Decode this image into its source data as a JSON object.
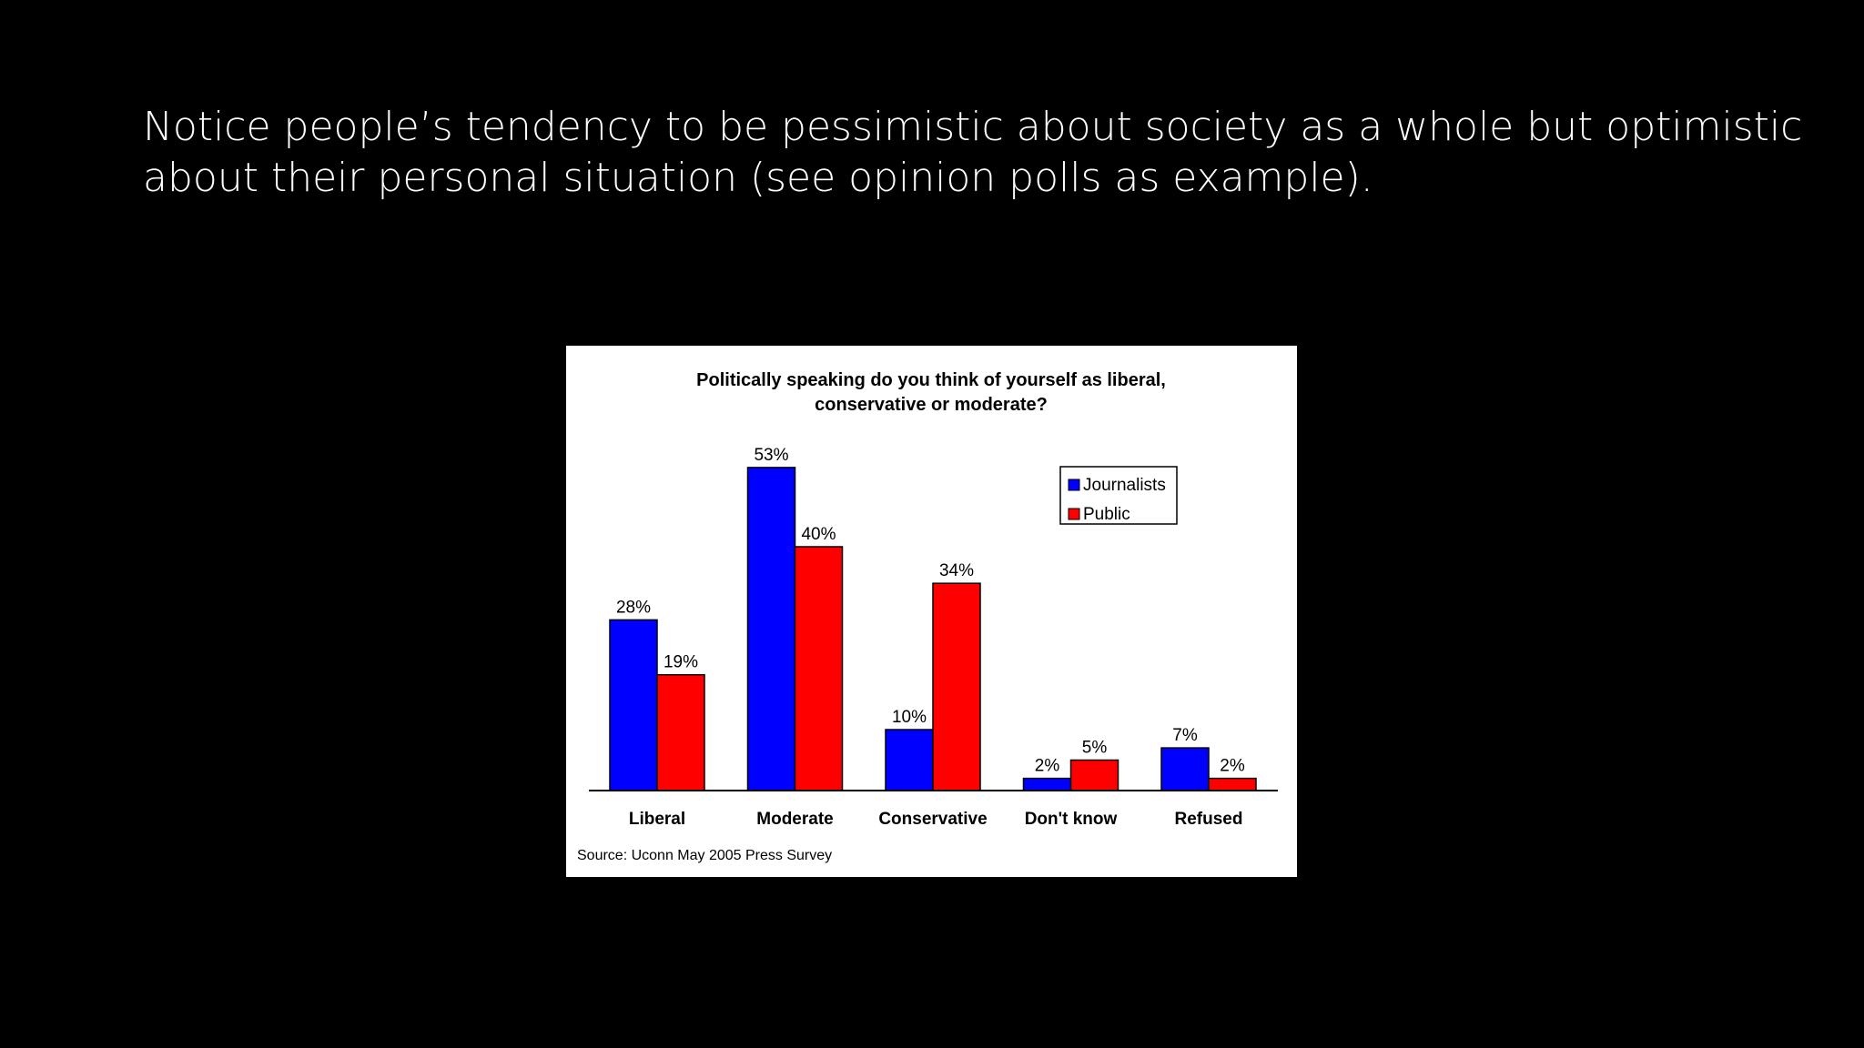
{
  "slide": {
    "text_line1": "Notice people’s tendency to be pessimistic about society as a whole but optimistic",
    "text_line2": "about their personal situation (see opinion polls as example)."
  },
  "chart_data": {
    "type": "bar",
    "title_line1": "Politically speaking do you think of yourself as liberal,",
    "title_line2": "conservative or moderate?",
    "categories": [
      "Liberal",
      "Moderate",
      "Conservative",
      "Don't know",
      "Refused"
    ],
    "series": [
      {
        "name": "Journalists",
        "color": "#0000ff",
        "values": [
          28,
          53,
          10,
          2,
          7
        ]
      },
      {
        "name": "Public",
        "color": "#ff0000",
        "values": [
          19,
          40,
          34,
          5,
          2
        ]
      }
    ],
    "value_suffix": "%",
    "ylim": [
      0,
      60
    ],
    "grid": false,
    "legend_position": "top-right",
    "source": "Source:  Uconn May 2005 Press Survey"
  }
}
